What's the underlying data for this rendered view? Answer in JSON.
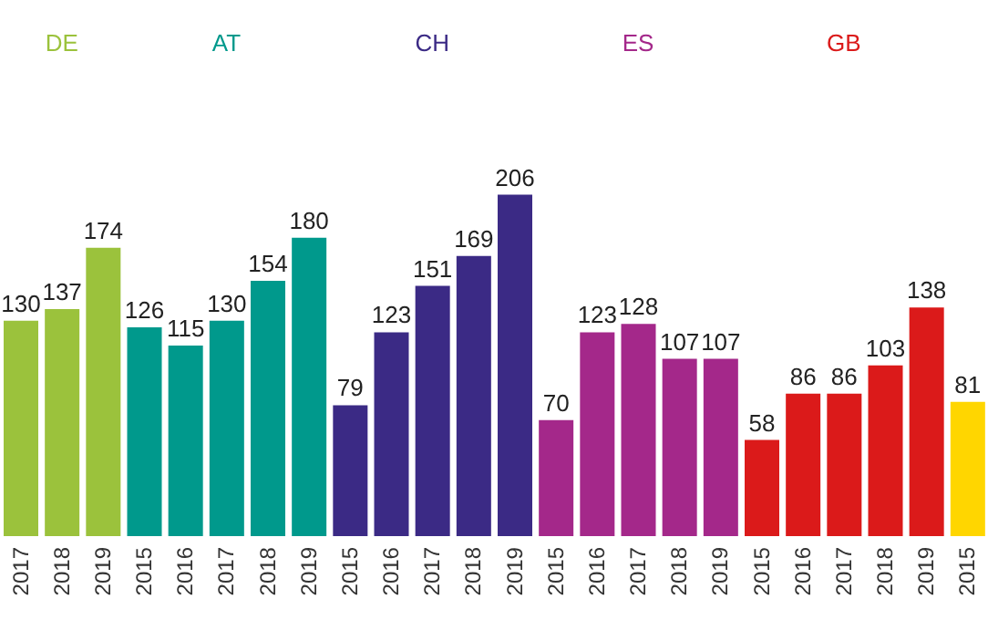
{
  "chart_data": {
    "type": "bar",
    "categories": [
      "2017",
      "2018",
      "2019",
      "2015",
      "2016",
      "2017",
      "2018",
      "2019",
      "2015",
      "2016",
      "2017",
      "2018",
      "2019",
      "2015",
      "2016",
      "2017",
      "2018",
      "2019",
      "2015",
      "2016",
      "2017",
      "2018",
      "2019",
      "2015"
    ],
    "series": [
      {
        "name": "DE",
        "color": "#9bc23c",
        "values": [
          130,
          137,
          174,
          null,
          null,
          null,
          null,
          null,
          null,
          null,
          null,
          null,
          null,
          null,
          null,
          null,
          null,
          null,
          null,
          null,
          null,
          null,
          null,
          null
        ]
      },
      {
        "name": "AT",
        "color": "#00998c",
        "values": [
          null,
          null,
          null,
          126,
          115,
          130,
          154,
          180,
          null,
          null,
          null,
          null,
          null,
          null,
          null,
          null,
          null,
          null,
          null,
          null,
          null,
          null,
          null,
          null
        ]
      },
      {
        "name": "CH",
        "color": "#3b2a85",
        "values": [
          null,
          null,
          null,
          null,
          null,
          null,
          null,
          null,
          79,
          123,
          151,
          169,
          206,
          null,
          null,
          null,
          null,
          null,
          null,
          null,
          null,
          null,
          null,
          null
        ]
      },
      {
        "name": "ES",
        "color": "#a4288a",
        "values": [
          null,
          null,
          null,
          null,
          null,
          null,
          null,
          null,
          null,
          null,
          null,
          null,
          null,
          70,
          123,
          128,
          107,
          107,
          null,
          null,
          null,
          null,
          null,
          null
        ]
      },
      {
        "name": "GB",
        "color": "#db1a1a",
        "values": [
          null,
          null,
          null,
          null,
          null,
          null,
          null,
          null,
          null,
          null,
          null,
          null,
          null,
          null,
          null,
          null,
          null,
          null,
          58,
          86,
          86,
          103,
          138,
          null
        ]
      },
      {
        "color": "#ffd600",
        "values": [
          null,
          null,
          null,
          null,
          null,
          null,
          null,
          null,
          null,
          null,
          null,
          null,
          null,
          null,
          null,
          null,
          null,
          null,
          null,
          null,
          null,
          null,
          null,
          81
        ]
      }
    ],
    "data_labels": true,
    "grid": false
  }
}
